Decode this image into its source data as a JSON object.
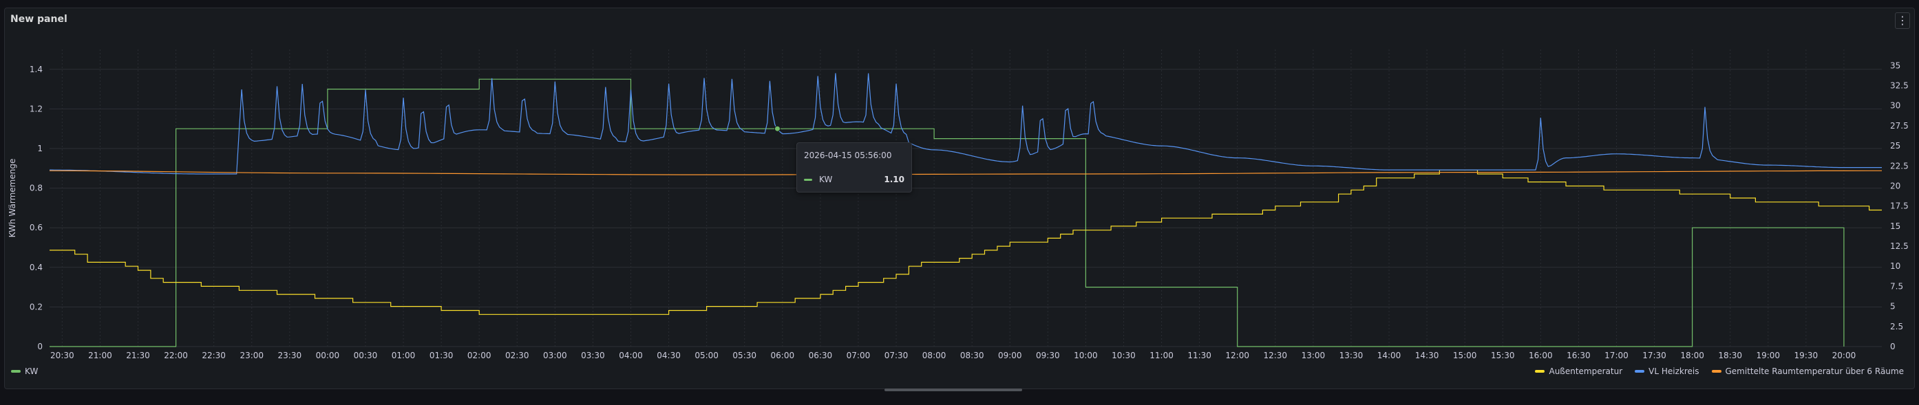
{
  "panel": {
    "title": "New panel",
    "menu_icon": "vertical-ellipsis-icon"
  },
  "colors": {
    "kw": "#73bf69",
    "aussen": "#fade2a",
    "vl": "#5794f2",
    "raum": "#ff9830"
  },
  "tooltip": {
    "time": "2026-04-15 05:56:00",
    "series": "KW",
    "value": "1.10"
  },
  "legend": {
    "left": [
      "KW"
    ],
    "right": [
      "Außentemperatur",
      "VL Heizkreis",
      "Gemittelte Raumtemperatur über 6 Räume"
    ]
  },
  "chart_data": {
    "type": "line",
    "ylabel": "KWh Wärmemenge",
    "ylim": [
      0,
      1.5
    ],
    "y_ticks": [
      "0",
      "0.2",
      "0.4",
      "0.6",
      "0.8",
      "1",
      "1.2",
      "1.4"
    ],
    "y2lim": [
      0,
      37
    ],
    "y2_ticks": [
      "0",
      "2.5",
      "5",
      "7.5",
      "10",
      "12.5",
      "15",
      "17.5",
      "20",
      "22.5",
      "25",
      "27.5",
      "30",
      "32.5",
      "35"
    ],
    "xlim_minutes": [
      -220,
      1230
    ],
    "x_tick_labels": [
      "20:30",
      "21:00",
      "21:30",
      "22:00",
      "22:30",
      "23:00",
      "23:30",
      "00:00",
      "00:30",
      "01:00",
      "01:30",
      "02:00",
      "02:30",
      "03:00",
      "03:30",
      "04:00",
      "04:30",
      "05:00",
      "05:30",
      "06:00",
      "06:30",
      "07:00",
      "07:30",
      "08:00",
      "08:30",
      "09:00",
      "09:30",
      "10:00",
      "10:30",
      "11:00",
      "11:30",
      "12:00",
      "12:30",
      "13:00",
      "13:30",
      "14:00",
      "14:30",
      "15:00",
      "15:30",
      "16:00",
      "16:30",
      "17:00",
      "17:30",
      "18:00",
      "18:30",
      "19:00",
      "19:30",
      "20:00"
    ],
    "grid": true,
    "legend_placement": "bottom",
    "series": [
      {
        "name": "KW",
        "axis": "left",
        "step": true,
        "points": [
          [
            -220,
            0
          ],
          [
            -120,
            0
          ],
          [
            -120,
            1.1
          ],
          [
            -95,
            1.1
          ],
          [
            -95,
            1.1
          ],
          [
            0,
            1.1
          ],
          [
            0,
            1.3
          ],
          [
            120,
            1.3
          ],
          [
            120,
            1.35
          ],
          [
            240,
            1.35
          ],
          [
            240,
            1.1
          ],
          [
            480,
            1.1
          ],
          [
            480,
            1.05
          ],
          [
            600,
            1.05
          ],
          [
            600,
            0.3
          ],
          [
            720,
            0.3
          ],
          [
            720,
            0
          ],
          [
            1080,
            0
          ],
          [
            1080,
            0.6
          ],
          [
            1200,
            0.6
          ],
          [
            1200,
            0
          ]
        ]
      },
      {
        "name": "Außentemperatur",
        "axis": "right",
        "step": true,
        "points": [
          [
            -220,
            12.0
          ],
          [
            -180,
            10.5
          ],
          [
            -120,
            8.0
          ],
          [
            -60,
            7.0
          ],
          [
            0,
            6.0
          ],
          [
            60,
            5.0
          ],
          [
            120,
            4.2
          ],
          [
            180,
            3.8
          ],
          [
            240,
            3.9
          ],
          [
            300,
            4.8
          ],
          [
            360,
            5.6
          ],
          [
            420,
            7.8
          ],
          [
            480,
            10.5
          ],
          [
            540,
            12.8
          ],
          [
            600,
            14.5
          ],
          [
            660,
            15.8
          ],
          [
            720,
            16.5
          ],
          [
            780,
            18.0
          ],
          [
            840,
            21.0
          ],
          [
            890,
            22.0
          ],
          [
            960,
            20.5
          ],
          [
            1020,
            19.5
          ],
          [
            1080,
            19.2
          ],
          [
            1140,
            18.0
          ],
          [
            1200,
            17.5
          ],
          [
            1230,
            17.0
          ]
        ]
      },
      {
        "name": "VL Heizkreis",
        "axis": "right",
        "step": false,
        "spikes": [
          -68,
          -40,
          -20,
          -5,
          30,
          60,
          75,
          95,
          130,
          155,
          180,
          220,
          240,
          270,
          298,
          320,
          350,
          388,
          402,
          428,
          450,
          550,
          565,
          585,
          605,
          960,
          1090
        ],
        "points": [
          [
            -220,
            22.0
          ],
          [
            -100,
            21.5
          ],
          [
            -70,
            21.5
          ],
          [
            -70,
            25.5
          ],
          [
            0,
            26.5
          ],
          [
            60,
            24.5
          ],
          [
            120,
            27.0
          ],
          [
            180,
            26.5
          ],
          [
            240,
            25.5
          ],
          [
            300,
            27.0
          ],
          [
            360,
            26.5
          ],
          [
            420,
            28.0
          ],
          [
            480,
            24.5
          ],
          [
            540,
            23.0
          ],
          [
            570,
            24.5
          ],
          [
            600,
            26.5
          ],
          [
            660,
            25.0
          ],
          [
            720,
            23.5
          ],
          [
            780,
            22.5
          ],
          [
            840,
            22.0
          ],
          [
            890,
            22.0
          ],
          [
            960,
            22.0
          ],
          [
            980,
            23.5
          ],
          [
            1020,
            24.0
          ],
          [
            1080,
            23.5
          ],
          [
            1140,
            22.6
          ],
          [
            1200,
            22.3
          ],
          [
            1230,
            22.3
          ]
        ]
      },
      {
        "name": "Gemittelte Raumtemperatur über 6 Räume",
        "axis": "right",
        "step": false,
        "points": [
          [
            -220,
            21.9
          ],
          [
            0,
            21.6
          ],
          [
            300,
            21.4
          ],
          [
            600,
            21.5
          ],
          [
            900,
            21.7
          ],
          [
            1230,
            21.9
          ]
        ]
      }
    ]
  }
}
